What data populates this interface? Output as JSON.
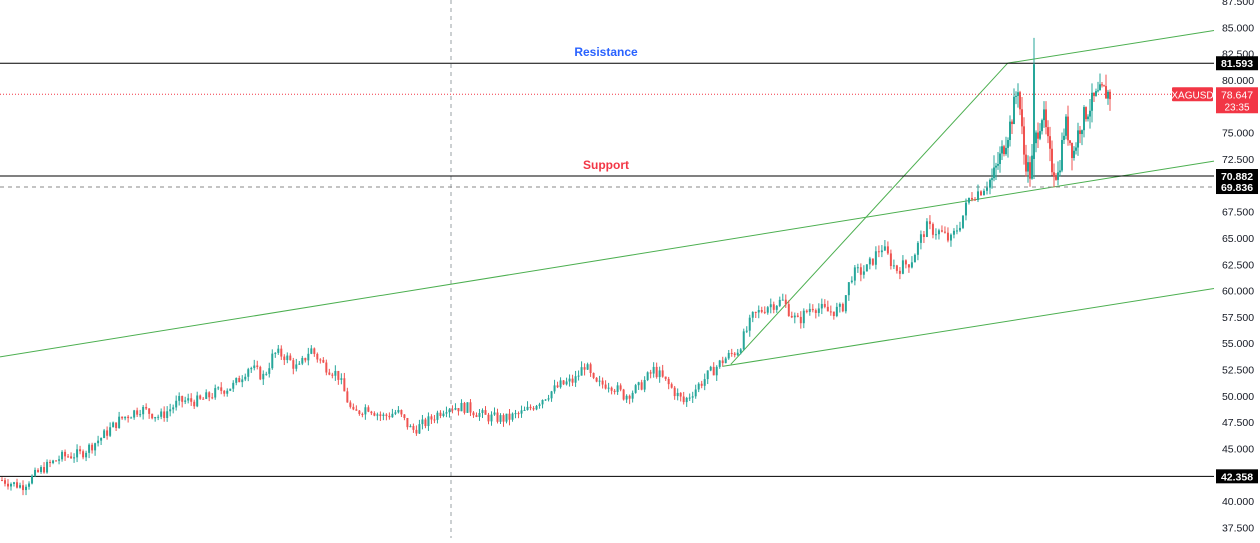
{
  "colors": {
    "up": "#26a69a",
    "down": "#ef5350",
    "trend": "#4caf50",
    "level": "#000000",
    "resistance_label": "#2962ff",
    "support_label": "#f23645",
    "price_tag": "#f23645",
    "axis_text": "#131722",
    "dashed": "#9aa0a6"
  },
  "chart_data": {
    "type": "candlestick",
    "symbol": "XAGUSD",
    "y_axis": {
      "min": 36.5,
      "max": 87.6,
      "ticks": [
        "37.500",
        "40.000",
        "42.500",
        "45.000",
        "47.500",
        "50.000",
        "52.500",
        "55.000",
        "57.500",
        "60.000",
        "62.500",
        "65.000",
        "67.500",
        "70.000",
        "72.500",
        "75.000",
        "77.500",
        "80.000",
        "82.500",
        "85.000",
        "87.500"
      ]
    },
    "levels": [
      {
        "name": "Resistance",
        "value": 81.593,
        "tag": "81.593",
        "style": "solid"
      },
      {
        "name": "Support",
        "value": 70.882,
        "tag": "70.882",
        "style": "solid"
      },
      {
        "name": "",
        "value": 42.358,
        "tag": "42.358",
        "style": "solid"
      },
      {
        "name": "",
        "value": 69.836,
        "tag": "69.836",
        "style": "dashed"
      }
    ],
    "annotations": {
      "resistance": "Resistance",
      "support": "Support"
    },
    "current_price": {
      "symbol": "XAGUSD",
      "value": "78.647",
      "value_num": 78.647,
      "countdown": "23:35"
    },
    "trendlines": [
      {
        "from": [
          0,
          53.7
        ],
        "to": [
          1,
          72.3
        ]
      },
      {
        "from": [
          0.595,
          52.8
        ],
        "to": [
          1,
          60.2
        ]
      },
      {
        "from": [
          0.602,
          53.0
        ],
        "to": [
          0.83,
          81.6
        ]
      },
      {
        "from": [
          0.83,
          81.6
        ],
        "to": [
          1,
          84.7
        ]
      }
    ],
    "price_path": [
      [
        0.0,
        42.0
      ],
      [
        0.02,
        41.4
      ],
      [
        0.04,
        43.0
      ],
      [
        0.06,
        44.2
      ],
      [
        0.08,
        44.5
      ],
      [
        0.1,
        46.0
      ],
      [
        0.12,
        47.8
      ],
      [
        0.14,
        48.8
      ],
      [
        0.16,
        48.0
      ],
      [
        0.18,
        49.5
      ],
      [
        0.2,
        49.5
      ],
      [
        0.22,
        50.5
      ],
      [
        0.235,
        51.0
      ],
      [
        0.25,
        52.8
      ],
      [
        0.265,
        51.8
      ],
      [
        0.275,
        54.0
      ],
      [
        0.285,
        53.9
      ],
      [
        0.3,
        52.5
      ],
      [
        0.312,
        54.5
      ],
      [
        0.325,
        53.0
      ],
      [
        0.34,
        52.0
      ],
      [
        0.355,
        48.2
      ],
      [
        0.37,
        49.0
      ],
      [
        0.385,
        48.0
      ],
      [
        0.4,
        48.5
      ],
      [
        0.415,
        46.7
      ],
      [
        0.43,
        47.5
      ],
      [
        0.45,
        49.0
      ],
      [
        0.47,
        48.9
      ],
      [
        0.49,
        48.0
      ],
      [
        0.51,
        47.8
      ],
      [
        0.53,
        48.5
      ],
      [
        0.55,
        50.0
      ],
      [
        0.565,
        51.0
      ],
      [
        0.58,
        51.5
      ],
      [
        0.59,
        53.0
      ],
      [
        0.6,
        51.0
      ],
      [
        0.615,
        51.2
      ],
      [
        0.63,
        50.0
      ],
      [
        0.645,
        50.8
      ],
      [
        0.66,
        52.5
      ],
      [
        0.675,
        51.0
      ],
      [
        0.69,
        49.4
      ],
      [
        0.7,
        50.5
      ],
      [
        0.715,
        52.0
      ],
      [
        0.73,
        53.4
      ],
      [
        0.745,
        54.4
      ],
      [
        0.76,
        57.5
      ],
      [
        0.775,
        58.6
      ],
      [
        0.79,
        59.0
      ],
      [
        0.805,
        57.0
      ],
      [
        0.82,
        58.6
      ],
      [
        0.835,
        58.0
      ],
      [
        0.85,
        58.2
      ],
      [
        0.86,
        61.5
      ],
      [
        0.875,
        62.0
      ],
      [
        0.89,
        64.2
      ],
      [
        0.905,
        62.0
      ],
      [
        0.92,
        62.8
      ],
      [
        0.935,
        66.0
      ],
      [
        0.95,
        65.5
      ],
      [
        0.96,
        64.7
      ],
      [
        0.97,
        66.5
      ],
      [
        0.98,
        69.0
      ],
      [
        0.99,
        69.5
      ],
      [
        0.995,
        70.0
      ],
      [
        1.0,
        70.5
      ]
    ],
    "price_path_right": [
      [
        0.0,
        70.5
      ],
      [
        0.08,
        73.0
      ],
      [
        0.16,
        76.0
      ],
      [
        0.22,
        79.5
      ],
      [
        0.27,
        73.0
      ],
      [
        0.32,
        71.0
      ],
      [
        0.38,
        75.0
      ],
      [
        0.43,
        77.0
      ],
      [
        0.5,
        72.0
      ],
      [
        0.56,
        71.0
      ],
      [
        0.62,
        76.0
      ],
      [
        0.69,
        73.0
      ],
      [
        0.74,
        75.5
      ],
      [
        0.8,
        77.0
      ],
      [
        0.87,
        78.2
      ],
      [
        0.94,
        78.9
      ],
      [
        1.0,
        78.647
      ]
    ],
    "spike": {
      "high": 84.0,
      "low": 70.6
    }
  }
}
